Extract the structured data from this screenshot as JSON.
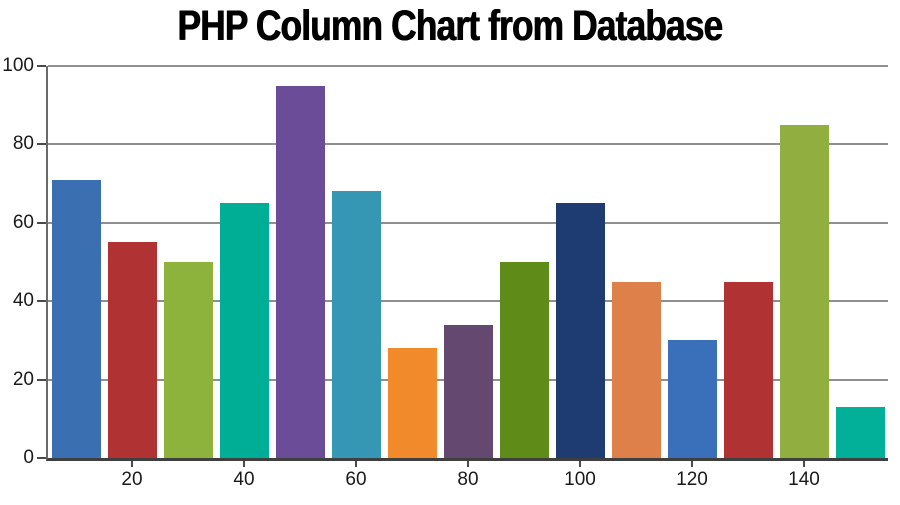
{
  "title": "PHP Column Chart from Database",
  "chart_data": {
    "type": "bar",
    "title": "PHP Column Chart from Database",
    "x": [
      10,
      20,
      30,
      40,
      50,
      60,
      70,
      80,
      90,
      100,
      110,
      120,
      130,
      140,
      150
    ],
    "values": [
      71,
      55,
      50,
      65,
      95,
      68,
      28,
      34,
      50,
      65,
      45,
      30,
      45,
      85,
      13
    ],
    "bar_colors": [
      "#3A6FB2",
      "#B13233",
      "#8DB33C",
      "#00AE96",
      "#6B4C99",
      "#3697B4",
      "#F08A2B",
      "#65486F",
      "#5F8B19",
      "#1E3C72",
      "#DD8049",
      "#3A70B9",
      "#B13233",
      "#90AF40",
      "#02B09A"
    ],
    "xlabel": "",
    "ylabel": "",
    "x_ticks": [
      20,
      40,
      60,
      80,
      100,
      120,
      140
    ],
    "y_ticks": [
      0,
      20,
      40,
      60,
      80,
      100
    ],
    "ylim": [
      0,
      100
    ],
    "grid": true,
    "legend_position": "none"
  },
  "colors": {
    "background": "#FFFFFF",
    "gridline": "#8F8F8F",
    "axis_line": "#3F3F3F",
    "tick_mark": "#4A4A4A",
    "tick_label": "#1A1A1A",
    "title_color": "#000000"
  }
}
